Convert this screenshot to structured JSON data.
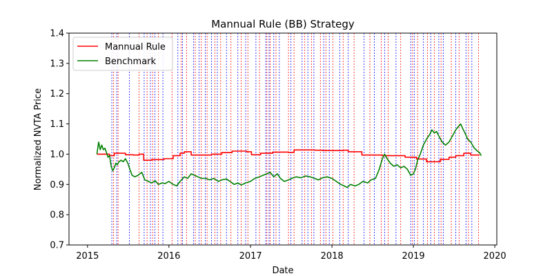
{
  "chart_data": {
    "type": "line",
    "title": "Mannual Rule (BB) Strategy",
    "xlabel": "Date",
    "ylabel": "Normalized NVTA Price",
    "xlim": [
      "2014-10-10",
      "2020-01-10"
    ],
    "ylim": [
      0.7,
      1.4
    ],
    "yticks": [
      "0.7",
      "0.8",
      "0.9",
      "1.0",
      "1.1",
      "1.2",
      "1.3",
      "1.4"
    ],
    "xticks": [
      {
        "date": "2015-01-01",
        "label": "2015"
      },
      {
        "date": "2016-01-01",
        "label": "2016"
      },
      {
        "date": "2017-01-01",
        "label": "2017"
      },
      {
        "date": "2018-01-01",
        "label": "2018"
      },
      {
        "date": "2019-01-01",
        "label": "2019"
      },
      {
        "date": "2020-01-01",
        "label": "2020"
      }
    ],
    "grid": false,
    "legend_position": "top-left",
    "colors": {
      "mannual_rule": "#ff0000",
      "benchmark": "#008000",
      "long_entry": "#0000ff",
      "short_entry": "#ff0000"
    },
    "series": [
      {
        "name": "Mannual Rule",
        "color": "#ff0000",
        "step": true,
        "points": [
          [
            "2015-02-12",
            1.0
          ],
          [
            "2015-04-10",
            0.995
          ],
          [
            "2015-05-01",
            1.003
          ],
          [
            "2015-06-20",
            0.998
          ],
          [
            "2015-07-25",
            0.997
          ],
          [
            "2015-08-20",
            1.0
          ],
          [
            "2015-09-10",
            0.98
          ],
          [
            "2015-10-15",
            0.982
          ],
          [
            "2015-12-10",
            0.985
          ],
          [
            "2016-01-20",
            0.995
          ],
          [
            "2016-02-20",
            1.003
          ],
          [
            "2016-03-10",
            1.008
          ],
          [
            "2016-04-10",
            0.997
          ],
          [
            "2016-05-20",
            0.997
          ],
          [
            "2016-07-10",
            1.0
          ],
          [
            "2016-08-25",
            1.005
          ],
          [
            "2016-10-10",
            1.01
          ],
          [
            "2016-12-15",
            1.008
          ],
          [
            "2017-01-05",
            0.998
          ],
          [
            "2017-02-15",
            1.003
          ],
          [
            "2017-04-10",
            1.007
          ],
          [
            "2017-06-20",
            1.006
          ],
          [
            "2017-07-15",
            1.014
          ],
          [
            "2017-10-15",
            1.013
          ],
          [
            "2017-11-20",
            1.012
          ],
          [
            "2018-02-20",
            1.013
          ],
          [
            "2018-03-15",
            1.008
          ],
          [
            "2018-05-15",
            0.997
          ],
          [
            "2018-08-15",
            0.995
          ],
          [
            "2018-11-25",
            0.99
          ],
          [
            "2019-01-15",
            0.984
          ],
          [
            "2019-03-01",
            0.975
          ],
          [
            "2019-05-01",
            0.983
          ],
          [
            "2019-06-10",
            0.99
          ],
          [
            "2019-07-10",
            0.995
          ],
          [
            "2019-08-15",
            1.003
          ],
          [
            "2019-09-15",
            0.997
          ],
          [
            "2019-10-25",
            0.997
          ]
        ]
      },
      {
        "name": "Benchmark",
        "color": "#008000",
        "step": false,
        "points": [
          [
            "2015-02-12",
            1.0
          ],
          [
            "2015-02-20",
            1.04
          ],
          [
            "2015-02-27",
            1.015
          ],
          [
            "2015-03-06",
            1.03
          ],
          [
            "2015-03-13",
            1.015
          ],
          [
            "2015-03-20",
            1.02
          ],
          [
            "2015-03-27",
            1.005
          ],
          [
            "2015-04-03",
            0.99
          ],
          [
            "2015-04-10",
            0.995
          ],
          [
            "2015-04-17",
            0.96
          ],
          [
            "2015-04-24",
            0.945
          ],
          [
            "2015-05-01",
            0.955
          ],
          [
            "2015-05-08",
            0.97
          ],
          [
            "2015-05-15",
            0.965
          ],
          [
            "2015-05-22",
            0.975
          ],
          [
            "2015-06-01",
            0.98
          ],
          [
            "2015-06-10",
            0.975
          ],
          [
            "2015-06-20",
            0.985
          ],
          [
            "2015-07-01",
            0.97
          ],
          [
            "2015-07-10",
            0.95
          ],
          [
            "2015-07-20",
            0.93
          ],
          [
            "2015-08-01",
            0.925
          ],
          [
            "2015-08-15",
            0.93
          ],
          [
            "2015-09-01",
            0.94
          ],
          [
            "2015-09-15",
            0.915
          ],
          [
            "2015-10-01",
            0.91
          ],
          [
            "2015-10-15",
            0.905
          ],
          [
            "2015-11-01",
            0.912
          ],
          [
            "2015-11-15",
            0.9
          ],
          [
            "2015-12-01",
            0.905
          ],
          [
            "2015-12-15",
            0.903
          ],
          [
            "2016-01-01",
            0.91
          ],
          [
            "2016-01-20",
            0.9
          ],
          [
            "2016-02-05",
            0.895
          ],
          [
            "2016-02-20",
            0.91
          ],
          [
            "2016-03-10",
            0.925
          ],
          [
            "2016-03-25",
            0.92
          ],
          [
            "2016-04-10",
            0.935
          ],
          [
            "2016-04-25",
            0.93
          ],
          [
            "2016-05-10",
            0.925
          ],
          [
            "2016-05-25",
            0.92
          ],
          [
            "2016-06-15",
            0.92
          ],
          [
            "2016-07-01",
            0.915
          ],
          [
            "2016-07-20",
            0.92
          ],
          [
            "2016-08-10",
            0.91
          ],
          [
            "2016-08-25",
            0.915
          ],
          [
            "2016-09-15",
            0.918
          ],
          [
            "2016-10-01",
            0.91
          ],
          [
            "2016-10-20",
            0.9
          ],
          [
            "2016-11-05",
            0.905
          ],
          [
            "2016-11-20",
            0.898
          ],
          [
            "2016-12-10",
            0.905
          ],
          [
            "2017-01-01",
            0.91
          ],
          [
            "2017-01-20",
            0.92
          ],
          [
            "2017-02-10",
            0.925
          ],
          [
            "2017-02-25",
            0.93
          ],
          [
            "2017-03-15",
            0.935
          ],
          [
            "2017-03-30",
            0.94
          ],
          [
            "2017-04-15",
            0.925
          ],
          [
            "2017-05-01",
            0.935
          ],
          [
            "2017-05-15",
            0.92
          ],
          [
            "2017-06-01",
            0.91
          ],
          [
            "2017-06-20",
            0.915
          ],
          [
            "2017-07-05",
            0.92
          ],
          [
            "2017-07-25",
            0.925
          ],
          [
            "2017-08-15",
            0.922
          ],
          [
            "2017-09-05",
            0.928
          ],
          [
            "2017-09-25",
            0.925
          ],
          [
            "2017-10-15",
            0.92
          ],
          [
            "2017-11-01",
            0.915
          ],
          [
            "2017-11-20",
            0.922
          ],
          [
            "2017-12-10",
            0.925
          ],
          [
            "2018-01-01",
            0.92
          ],
          [
            "2018-01-20",
            0.91
          ],
          [
            "2018-02-10",
            0.9
          ],
          [
            "2018-02-25",
            0.895
          ],
          [
            "2018-03-10",
            0.89
          ],
          [
            "2018-03-25",
            0.9
          ],
          [
            "2018-04-15",
            0.895
          ],
          [
            "2018-05-01",
            0.9
          ],
          [
            "2018-05-20",
            0.91
          ],
          [
            "2018-06-10",
            0.905
          ],
          [
            "2018-06-25",
            0.915
          ],
          [
            "2018-07-15",
            0.92
          ],
          [
            "2018-08-01",
            0.95
          ],
          [
            "2018-08-15",
            0.985
          ],
          [
            "2018-08-25",
            1.0
          ],
          [
            "2018-09-05",
            0.985
          ],
          [
            "2018-09-20",
            0.97
          ],
          [
            "2018-10-05",
            0.96
          ],
          [
            "2018-10-20",
            0.965
          ],
          [
            "2018-11-05",
            0.955
          ],
          [
            "2018-11-20",
            0.96
          ],
          [
            "2018-12-05",
            0.95
          ],
          [
            "2018-12-20",
            0.93
          ],
          [
            "2019-01-01",
            0.935
          ],
          [
            "2019-01-10",
            0.95
          ],
          [
            "2019-01-20",
            0.98
          ],
          [
            "2019-02-01",
            1.0
          ],
          [
            "2019-02-15",
            1.03
          ],
          [
            "2019-03-01",
            1.05
          ],
          [
            "2019-03-15",
            1.065
          ],
          [
            "2019-03-25",
            1.08
          ],
          [
            "2019-04-05",
            1.07
          ],
          [
            "2019-04-15",
            1.075
          ],
          [
            "2019-04-25",
            1.06
          ],
          [
            "2019-05-10",
            1.04
          ],
          [
            "2019-05-25",
            1.03
          ],
          [
            "2019-06-10",
            1.04
          ],
          [
            "2019-06-25",
            1.06
          ],
          [
            "2019-07-10",
            1.08
          ],
          [
            "2019-07-20",
            1.09
          ],
          [
            "2019-08-01",
            1.1
          ],
          [
            "2019-08-10",
            1.085
          ],
          [
            "2019-08-20",
            1.07
          ],
          [
            "2019-09-01",
            1.05
          ],
          [
            "2019-09-15",
            1.04
          ],
          [
            "2019-10-01",
            1.02
          ],
          [
            "2019-10-15",
            1.01
          ],
          [
            "2019-10-25",
            1.005
          ],
          [
            "2019-11-01",
            0.995
          ]
        ]
      }
    ],
    "long_entries": [
      "2015-04-20",
      "2015-05-12",
      "2015-07-08",
      "2015-09-12",
      "2015-10-10",
      "2015-10-30",
      "2015-12-05",
      "2016-02-10",
      "2016-03-02",
      "2016-04-20",
      "2016-05-15",
      "2016-06-12",
      "2016-07-10",
      "2016-08-05",
      "2016-09-15",
      "2016-11-05",
      "2016-12-10",
      "2017-01-25",
      "2017-03-10",
      "2017-03-25",
      "2017-04-15",
      "2017-05-10",
      "2017-07-01",
      "2017-08-20",
      "2017-09-15",
      "2017-10-12",
      "2017-11-25",
      "2017-12-20",
      "2018-02-05",
      "2018-03-15",
      "2018-05-25",
      "2018-07-10",
      "2018-08-25",
      "2018-10-15",
      "2018-12-20",
      "2019-01-05",
      "2019-02-15",
      "2019-03-20",
      "2019-04-25",
      "2019-05-15",
      "2019-07-10",
      "2019-08-25",
      "2019-09-20"
    ],
    "short_entries": [
      "2015-04-28",
      "2015-05-18",
      "2015-08-20",
      "2015-09-25",
      "2015-10-20",
      "2015-11-15",
      "2016-01-15",
      "2016-02-25",
      "2016-03-20",
      "2016-04-28",
      "2016-05-25",
      "2016-06-20",
      "2016-07-25",
      "2016-08-20",
      "2016-10-05",
      "2016-11-20",
      "2016-12-20",
      "2017-02-10",
      "2017-03-15",
      "2017-03-30",
      "2017-04-25",
      "2017-06-20",
      "2017-07-15",
      "2017-09-01",
      "2017-10-01",
      "2017-11-10",
      "2017-12-05",
      "2018-01-05",
      "2018-02-20",
      "2018-04-10",
      "2018-06-20",
      "2018-08-10",
      "2018-09-10",
      "2018-11-05",
      "2018-12-28",
      "2019-01-20",
      "2019-03-05",
      "2019-04-05",
      "2019-05-05",
      "2019-06-20",
      "2019-07-25",
      "2019-09-05",
      "2019-10-20"
    ]
  }
}
